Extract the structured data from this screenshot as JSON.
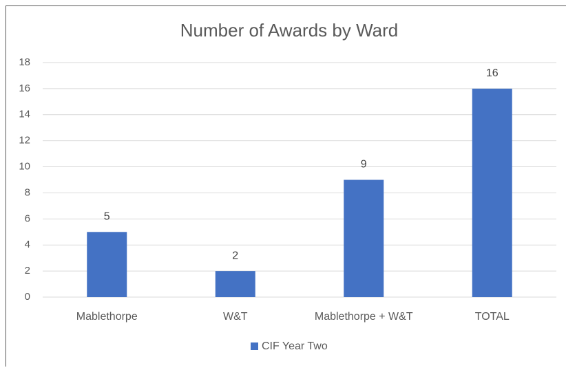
{
  "chart_data": {
    "type": "bar",
    "title": "Number of Awards by Ward",
    "categories": [
      "Mablethorpe",
      "W&T",
      "Mablethorpe + W&T",
      "TOTAL"
    ],
    "series": [
      {
        "name": "CIF Year Two",
        "color": "#4472c4",
        "values": [
          5,
          2,
          9,
          16
        ]
      }
    ],
    "ylim": [
      0,
      18
    ],
    "yticks": [
      0,
      2,
      4,
      6,
      8,
      10,
      12,
      14,
      16,
      18
    ],
    "grid": true,
    "legend": "bottom",
    "data_labels": true
  }
}
